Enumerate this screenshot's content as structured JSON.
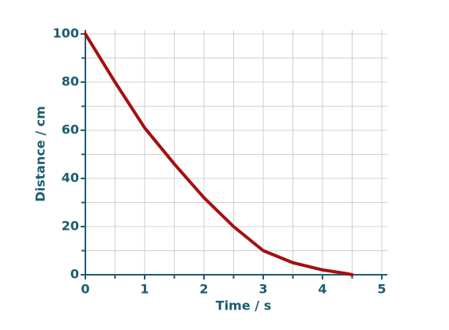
{
  "chart_data": {
    "type": "line",
    "x_label": "Time / s",
    "y_label": "Distance / cm",
    "x": [
      0,
      0.5,
      1,
      1.5,
      2,
      2.5,
      3,
      3.5,
      4,
      4.4,
      4.5
    ],
    "series": [
      {
        "name": "Distance",
        "color": "#a50f0f",
        "values": [
          100,
          80,
          61,
          46,
          32,
          20,
          10,
          5,
          2,
          0.5,
          0
        ]
      }
    ],
    "xlim": [
      0,
      5
    ],
    "ylim": [
      0,
      100
    ],
    "xticks": [
      0,
      1,
      2,
      3,
      4,
      5
    ],
    "yticks": [
      0,
      20,
      40,
      60,
      80,
      100
    ],
    "grid": true
  }
}
